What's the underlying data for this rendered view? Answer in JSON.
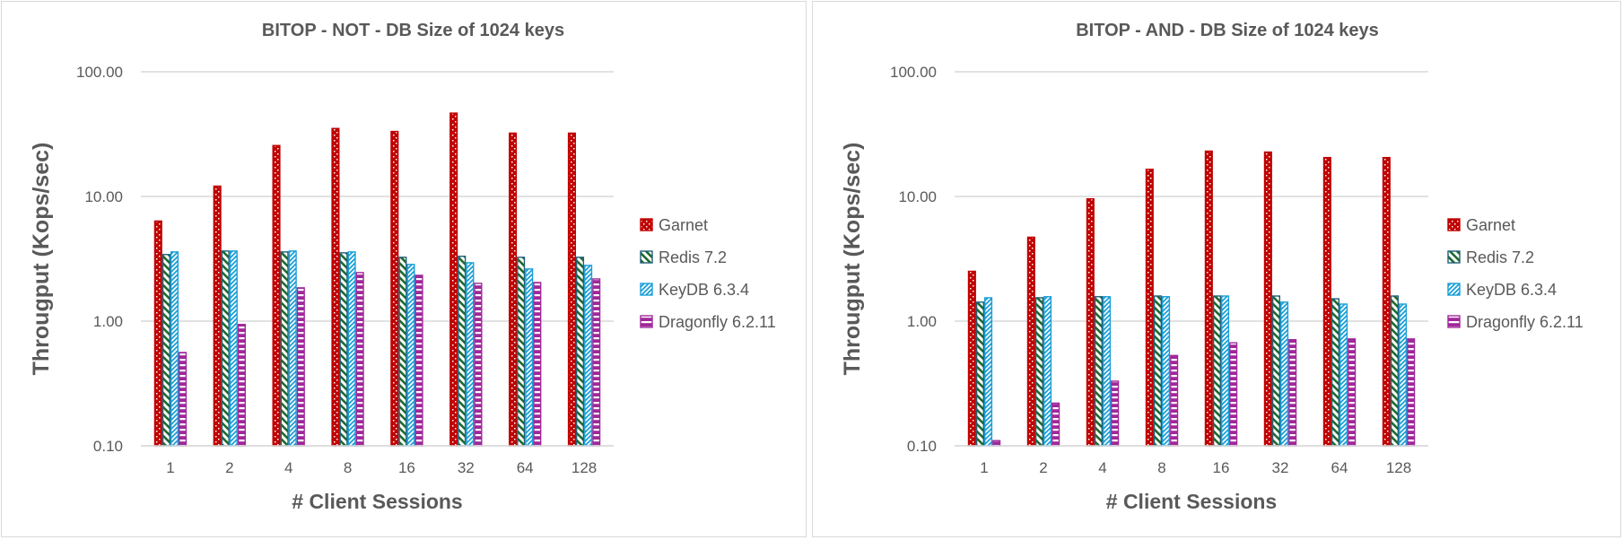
{
  "chart_data": [
    {
      "type": "bar",
      "title": "BITOP - NOT - DB Size of 1024 keys",
      "xlabel": "# Client Sessions",
      "ylabel": "Througput (Kops/sec)",
      "yscale": "log",
      "ylim": [
        0.1,
        100
      ],
      "yticks": [
        "0.10",
        "1.00",
        "10.00",
        "100.00"
      ],
      "grid": true,
      "legend_position": "right",
      "categories": [
        "1",
        "2",
        "4",
        "8",
        "16",
        "32",
        "64",
        "128"
      ],
      "series": [
        {
          "name": "Garnet",
          "color": "#c00000",
          "values": [
            6.35,
            12.1,
            25.6,
            35.1,
            33.2,
            46.6,
            32.2,
            32.2
          ]
        },
        {
          "name": "Redis 7.2",
          "color": "#1e6b2e",
          "values": [
            3.42,
            3.65,
            3.59,
            3.53,
            3.25,
            3.31,
            3.25,
            3.25
          ]
        },
        {
          "name": "KeyDB 6.3.4",
          "color": "#1a9fd8",
          "values": [
            3.59,
            3.65,
            3.65,
            3.59,
            2.85,
            2.94,
            2.62,
            2.8
          ]
        },
        {
          "name": "Dragonfly 6.2.11",
          "color": "#a0289a",
          "values": [
            0.56,
            0.94,
            1.85,
            2.45,
            2.33,
            2.01,
            2.04,
            2.18
          ]
        }
      ]
    },
    {
      "type": "bar",
      "title": "BITOP - AND - DB Size of 1024 keys",
      "xlabel": "# Client Sessions",
      "ylabel": "Througput (Kops/sec)",
      "yscale": "log",
      "ylim": [
        0.1,
        100
      ],
      "yticks": [
        "0.10",
        "1.00",
        "10.00",
        "100.00"
      ],
      "grid": true,
      "legend_position": "right",
      "categories": [
        "1",
        "2",
        "4",
        "8",
        "16",
        "32",
        "64",
        "128"
      ],
      "series": [
        {
          "name": "Garnet",
          "color": "#c00000",
          "values": [
            2.51,
            4.71,
            9.57,
            16.5,
            23.1,
            22.7,
            20.5,
            20.5
          ]
        },
        {
          "name": "Redis 7.2",
          "color": "#1e6b2e",
          "values": [
            1.42,
            1.54,
            1.57,
            1.59,
            1.59,
            1.59,
            1.51,
            1.59
          ]
        },
        {
          "name": "KeyDB 6.3.4",
          "color": "#1a9fd8",
          "values": [
            1.54,
            1.57,
            1.57,
            1.57,
            1.59,
            1.42,
            1.37,
            1.37
          ]
        },
        {
          "name": "Dragonfly 6.2.11",
          "color": "#a0289a",
          "values": [
            0.11,
            0.22,
            0.33,
            0.53,
            0.67,
            0.71,
            0.72,
            0.72
          ]
        }
      ]
    }
  ]
}
